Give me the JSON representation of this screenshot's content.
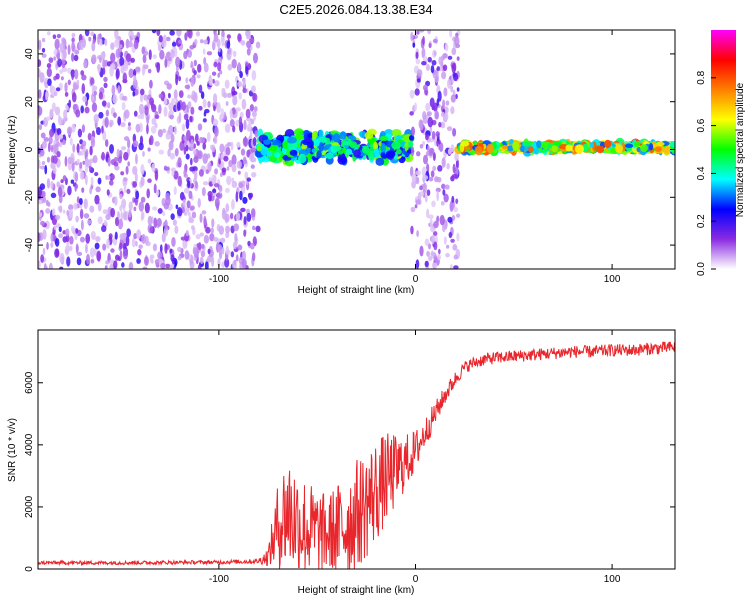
{
  "title": "C2E5.2026.084.13.38.E34",
  "chart_data": [
    {
      "type": "heatmap",
      "name": "spectrogram",
      "xlabel": "Height of straight line (km)",
      "ylabel": "Frequency (Hz)",
      "xlim": [
        -192,
        132
      ],
      "ylim": [
        -50,
        50
      ],
      "xticks": [
        -100,
        0,
        100
      ],
      "yticks": [
        -40,
        -20,
        0,
        20,
        40
      ],
      "colorbar": {
        "label": "Normalized spectral amplitude",
        "range": [
          0.0,
          1.0
        ],
        "ticks": [
          0.0,
          0.2,
          0.4,
          0.6,
          0.8
        ],
        "colormap": [
          "#ffffff",
          "#8a2be2",
          "#0000ff",
          "#00ffff",
          "#00ff00",
          "#ffff00",
          "#ff8000",
          "#ff0000",
          "#ff00ff"
        ]
      },
      "regions": [
        {
          "x": [
            -192,
            -80
          ],
          "kind": "noise",
          "freq_range": [
            -50,
            50
          ],
          "amplitude": 0.1
        },
        {
          "x": [
            -80,
            -2
          ],
          "kind": "signal",
          "freq_center": 1,
          "freq_spread": 10,
          "amplitude": 0.4
        },
        {
          "x": [
            -2,
            22
          ],
          "kind": "noise",
          "freq_range": [
            -50,
            50
          ],
          "amplitude": 0.1
        },
        {
          "x": [
            22,
            132
          ],
          "kind": "signal",
          "freq_center": 1,
          "freq_spread": 3,
          "amplitude": 0.55
        }
      ]
    },
    {
      "type": "line",
      "name": "snr",
      "xlabel": "Height of straight line (km)",
      "ylabel": "SNR (10 * v/v)",
      "xlim": [
        -192,
        132
      ],
      "ylim": [
        0,
        7700
      ],
      "xticks": [
        -100,
        0,
        100
      ],
      "yticks": [
        0,
        2000,
        4000,
        6000
      ],
      "color": "#e8262b",
      "series": [
        {
          "name": "SNR",
          "x": [
            -192,
            -150,
            -100,
            -80,
            -75,
            -70,
            -65,
            -60,
            -55,
            -50,
            -45,
            -40,
            -35,
            -30,
            -25,
            -20,
            -15,
            -10,
            -5,
            0,
            5,
            10,
            15,
            20,
            25,
            30,
            35,
            40,
            50,
            60,
            70,
            80,
            90,
            100,
            110,
            120,
            132
          ],
          "y": [
            200,
            200,
            220,
            250,
            400,
            1400,
            1900,
            1500,
            1300,
            1200,
            1100,
            1250,
            1450,
            1750,
            2100,
            2500,
            2900,
            3150,
            3450,
            3800,
            4400,
            5000,
            5600,
            6100,
            6500,
            6650,
            6750,
            6800,
            6850,
            6900,
            6950,
            7000,
            7000,
            7050,
            7050,
            7100,
            7150
          ],
          "noise_amplitude": [
            60,
            60,
            60,
            80,
            300,
            1400,
            2000,
            1800,
            1600,
            1400,
            1300,
            1500,
            1700,
            1800,
            1800,
            1700,
            1500,
            1200,
            900,
            700,
            500,
            400,
            300,
            250,
            200,
            200,
            200,
            200,
            200,
            200,
            200,
            200,
            200,
            200,
            200,
            200,
            200
          ]
        }
      ]
    }
  ]
}
